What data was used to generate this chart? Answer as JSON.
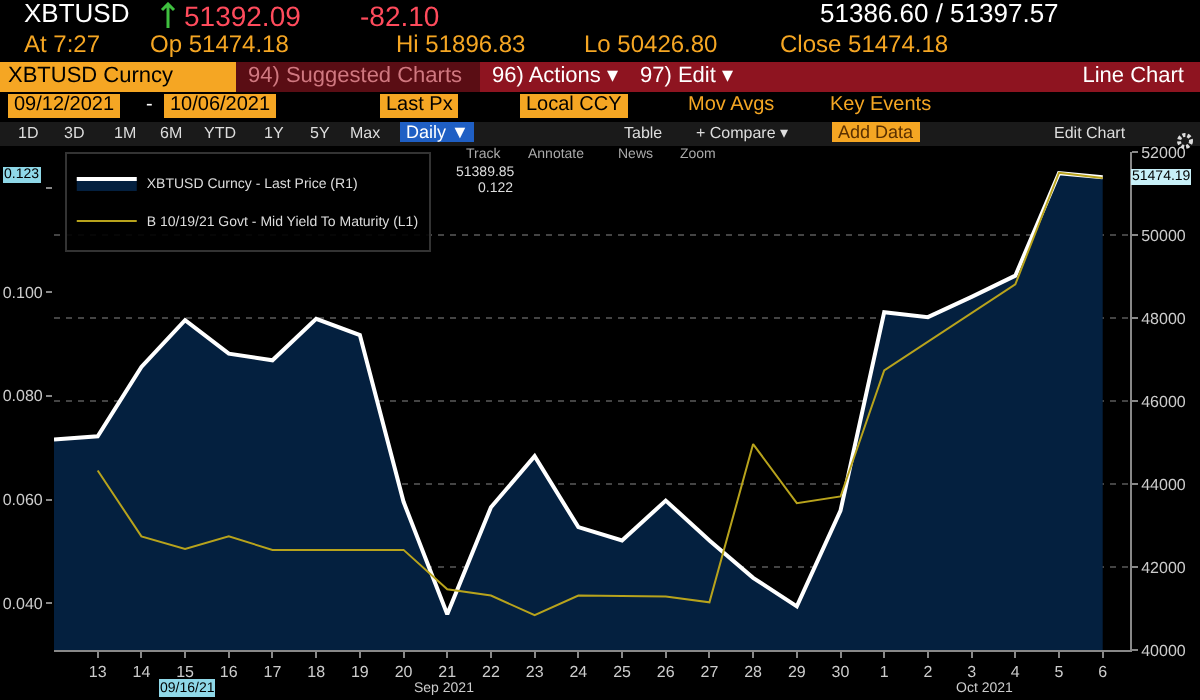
{
  "chart_data": {
    "type": "line",
    "x": [
      "2021-09-12",
      "2021-09-13",
      "2021-09-14",
      "2021-09-15",
      "2021-09-16",
      "2021-09-17",
      "2021-09-18",
      "2021-09-19",
      "2021-09-20",
      "2021-09-21",
      "2021-09-22",
      "2021-09-23",
      "2021-09-24",
      "2021-09-25",
      "2021-09-26",
      "2021-09-27",
      "2021-09-28",
      "2021-09-29",
      "2021-09-30",
      "2021-10-01",
      "2021-10-02",
      "2021-10-03",
      "2021-10-04",
      "2021-10-05",
      "2021-10-06"
    ],
    "series": [
      {
        "name": "XBTUSD Curncy - Last Price (R1)",
        "type": "area",
        "axis": "y2",
        "color": "#ffffff",
        "values": [
          45070,
          45150,
          46820,
          47950,
          47140,
          46980,
          47980,
          47590,
          43570,
          40860,
          43440,
          44670,
          42960,
          42640,
          43600,
          42640,
          41740,
          41050,
          43360,
          48140,
          48020,
          48510,
          49020,
          51490,
          51390
        ]
      },
      {
        "name": "B 10/19/21 Govt - Mid Yield To Maturity (L1)",
        "color": "#b8a31c",
        "values": [
          null,
          0.0656,
          0.0529,
          0.0505,
          0.0529,
          0.0503,
          0.0503,
          0.0503,
          0.0503,
          0.0427,
          0.0415,
          0.0377,
          0.0415,
          0.0414,
          0.0413,
          0.0402,
          0.0707,
          0.0593,
          0.0606,
          0.0849,
          null,
          null,
          0.1015,
          0.123,
          0.122
        ]
      }
    ],
    "xlim": [
      "2021-09-12",
      "2021-10-06T15:00"
    ],
    "xticks": [
      {
        "value": "2021-09-13",
        "label": "13"
      },
      {
        "value": "2021-09-14",
        "label": "14"
      },
      {
        "value": "2021-09-15",
        "label": "15"
      },
      {
        "value": "2021-09-16",
        "label": "16"
      },
      {
        "value": "2021-09-17",
        "label": "17"
      },
      {
        "value": "2021-09-18",
        "label": "18"
      },
      {
        "value": "2021-09-19",
        "label": "19"
      },
      {
        "value": "2021-09-20",
        "label": "20"
      },
      {
        "value": "2021-09-21",
        "label": "21"
      },
      {
        "value": "2021-09-22",
        "label": "22"
      },
      {
        "value": "2021-09-23",
        "label": "23"
      },
      {
        "value": "2021-09-24",
        "label": "24"
      },
      {
        "value": "2021-09-25",
        "label": "25"
      },
      {
        "value": "2021-09-26",
        "label": "26"
      },
      {
        "value": "2021-09-27",
        "label": "27"
      },
      {
        "value": "2021-09-28",
        "label": "28"
      },
      {
        "value": "2021-09-29",
        "label": "29"
      },
      {
        "value": "2021-09-30",
        "label": "30"
      },
      {
        "value": "2021-10-01",
        "label": "1"
      },
      {
        "value": "2021-10-02",
        "label": "2"
      },
      {
        "value": "2021-10-03",
        "label": "3"
      },
      {
        "value": "2021-10-04",
        "label": "4"
      },
      {
        "value": "2021-10-05",
        "label": "5"
      },
      {
        "value": "2021-10-06",
        "label": "6"
      }
    ],
    "ylim": [
      0.031,
      0.127
    ],
    "yticks": [
      {
        "value": 0.04,
        "label": "0.040"
      },
      {
        "value": 0.06,
        "label": "0.060"
      },
      {
        "value": 0.08,
        "label": "0.080"
      },
      {
        "value": 0.1,
        "label": "0.100"
      },
      {
        "value": 0.12,
        "label": null
      }
    ],
    "y2lim": [
      40000,
      52000
    ],
    "y2ticks": [
      40000,
      42000,
      44000,
      46000,
      48000,
      50000,
      52000
    ],
    "grid": "y",
    "legend": "top left",
    "marker": "none",
    "annotations": [
      "XBTUSD",
      "51392.09",
      "-82.10",
      "51386.60 / 51397.57",
      "At 7:27",
      "Op 51474.18",
      "Hi 51896.83",
      "Lo 50426.80",
      "Close 51474.18",
      "XBTUSD Curncy",
      "94) Suggested Charts",
      "96) Actions ▾",
      "97) Edit ▾",
      "Line Chart",
      "09/12/2021",
      "-",
      "10/06/2021",
      "Last Px",
      "Local CCY",
      "Mov Avgs",
      "Key Events",
      "1D",
      "3D",
      "1M",
      "6M",
      "YTD",
      "1Y",
      "5Y",
      "Max",
      "Daily ▼",
      "Table",
      "+ Compare ▾",
      "Add Data",
      "Edit Chart",
      "Track",
      "Annotate",
      "News",
      "Zoom",
      "51389.85",
      "0.122",
      "0.123",
      "51474.19",
      "Sep 2021",
      "Oct 2021",
      "09/16/21"
    ]
  }
}
